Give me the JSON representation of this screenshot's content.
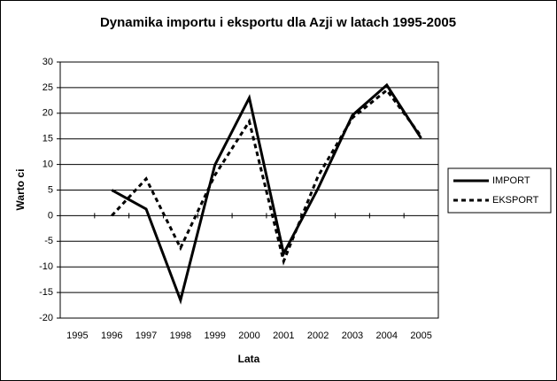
{
  "chart_data": {
    "type": "line",
    "title": "Dynamika importu i eksportu dla Azji w latach 1995-2005",
    "x_label": "Lata",
    "y_label": "Warto ci",
    "categories": [
      "1995",
      "1996",
      "1997",
      "1998",
      "1999",
      "2000",
      "2001",
      "2002",
      "2003",
      "2004",
      "2005"
    ],
    "series": [
      {
        "name": "IMPORT",
        "color": "#000000",
        "dash": "solid",
        "values": [
          null,
          5,
          1.3,
          -16.5,
          9.9,
          23,
          -7.4,
          5.3,
          19.6,
          25.5,
          15.1
        ]
      },
      {
        "name": "EKSPORT",
        "color": "#000000",
        "dash": "dashed",
        "values": [
          null,
          0,
          7.2,
          -6.3,
          7.9,
          18.4,
          -8.9,
          7.7,
          19.1,
          24.5,
          15.5
        ]
      }
    ],
    "ylim": [
      -20,
      30
    ],
    "yticks": [
      -20,
      -15,
      -10,
      -5,
      0,
      5,
      10,
      15,
      20,
      25,
      30
    ],
    "grid": true,
    "legend": "right"
  }
}
